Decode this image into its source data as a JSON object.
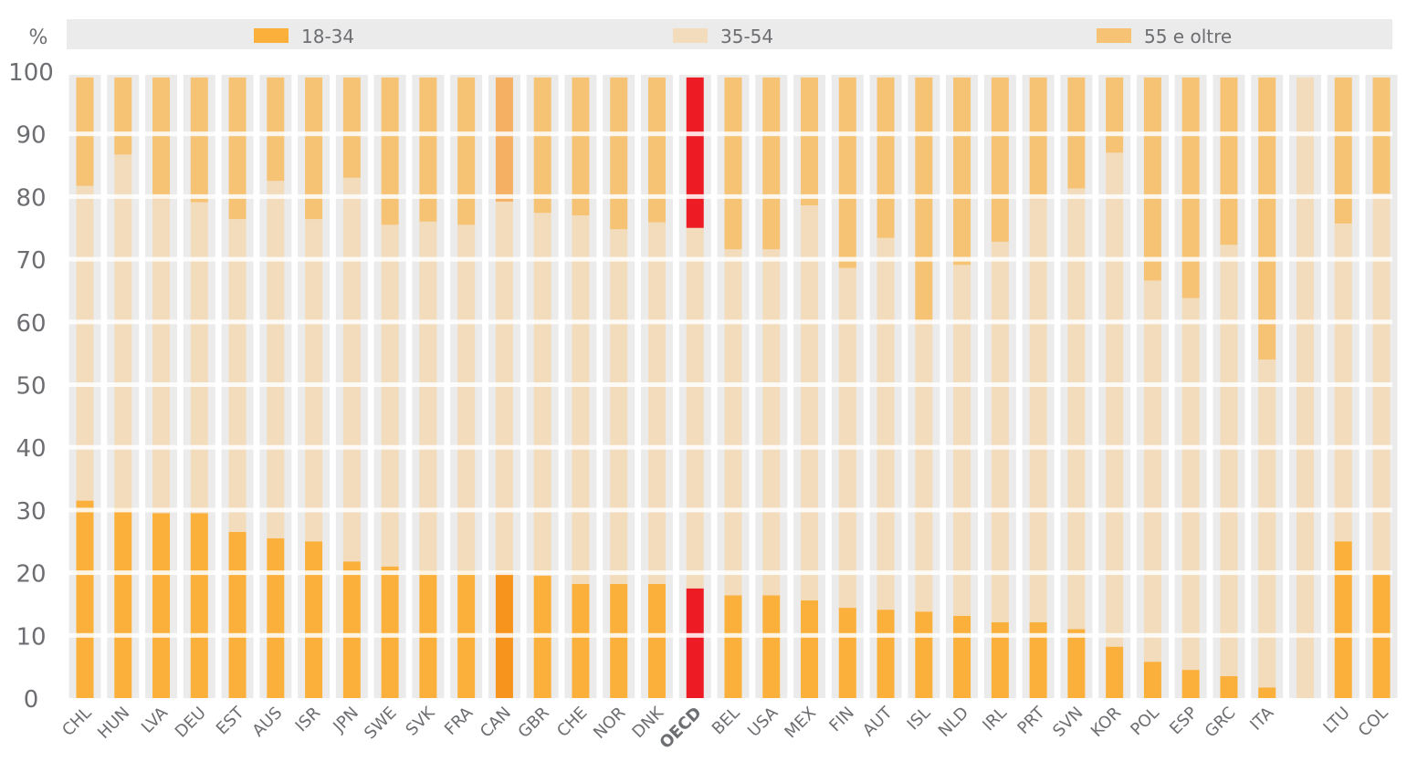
{
  "chart_data": {
    "type": "bar",
    "stacked": true,
    "ylabel": "%",
    "ylim": [
      0,
      100
    ],
    "yticks": [
      0,
      10,
      20,
      30,
      40,
      50,
      60,
      70,
      80,
      90,
      100
    ],
    "grid": true,
    "legend_placement": "top",
    "categories": [
      "CHL",
      "HUN",
      "LVA",
      "DEU",
      "EST",
      "AUS",
      "ISR",
      "JPN",
      "SWE",
      "SVK",
      "FRA",
      "CAN",
      "GBR",
      "CHE",
      "NOR",
      "DNK",
      "OECD",
      "BEL",
      "USA",
      "MEX",
      "FIN",
      "AUT",
      "ISL",
      "NLD",
      "IRL",
      "PRT",
      "SVN",
      "KOR",
      "POL",
      "ESP",
      "GRC",
      "ITA",
      "",
      "LTU",
      "COL"
    ],
    "highlight": {
      "OECD": "#ed1c24",
      "CAN": "#f7941d"
    },
    "series": [
      {
        "name": "18-34",
        "color": "#fbb03b",
        "values": [
          31.5,
          30.4,
          29.5,
          29.5,
          26.5,
          25.5,
          25,
          21.8,
          21,
          20.4,
          20.4,
          20,
          19.5,
          18.2,
          18.2,
          18.2,
          17.5,
          16.4,
          16.4,
          15.6,
          14.4,
          14.1,
          13.8,
          13.1,
          12.1,
          12.1,
          11,
          8.2,
          5.8,
          4.5,
          3.5,
          1.7,
          null,
          25,
          19.8
        ]
      },
      {
        "name": "35-54",
        "color": "#f2dcbb",
        "values": [
          50.2,
          56.3,
          50.1,
          49.6,
          49.9,
          57,
          51.4,
          61.2,
          54.5,
          55.6,
          55.1,
          59.2,
          57.9,
          58.8,
          56.6,
          57.7,
          57.5,
          55.2,
          55.2,
          63,
          54.2,
          59.3,
          46.2,
          56,
          60.7,
          67.5,
          70.3,
          78.8,
          60.8,
          59.3,
          68.8,
          52.3,
          99,
          50.7,
          60.7
        ]
      },
      {
        "name": "55 e oltre",
        "color": "#f6c374",
        "values": [
          17.3,
          12.3,
          19.4,
          19.9,
          22.6,
          16.5,
          22.6,
          16,
          23.5,
          23,
          23.5,
          19.8,
          21.6,
          22,
          24.2,
          23.1,
          24,
          27.4,
          27.4,
          20.4,
          30.4,
          25.6,
          39,
          29.9,
          26.2,
          19.4,
          17.7,
          12,
          32.4,
          35.2,
          26.7,
          45,
          null,
          23.3,
          18.5
        ]
      }
    ]
  }
}
